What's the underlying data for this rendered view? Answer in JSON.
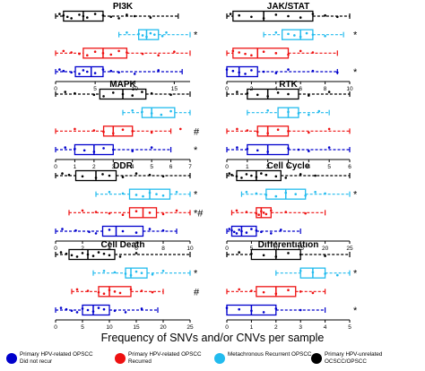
{
  "figure": {
    "xlabel": "Frequency of SNVs and/or CNVs per sample"
  },
  "colors": {
    "group1": "#0000cc",
    "group2": "#ee1111",
    "group3": "#22bbee",
    "group4": "#000000"
  },
  "legend": [
    {
      "label_lines": [
        "Primary HPV-related OPSCC",
        "Did not recur"
      ],
      "color": "#0000cc"
    },
    {
      "label_lines": [
        "Primary HPV-related OPSCC",
        "Recurred"
      ],
      "color": "#ee1111"
    },
    {
      "label_lines": [
        "Metachronous Recurrent OPSCC"
      ],
      "color": "#22bbee"
    },
    {
      "label_lines": [
        "Primary HPV-unrelated",
        "OCSCC/OPSCC"
      ],
      "color": "#000000"
    }
  ],
  "chart_data": [
    {
      "type": "boxplot",
      "title": "PI3K",
      "xlim": [
        0,
        17
      ],
      "xticks": [
        0,
        5,
        10,
        15
      ],
      "groups_top_to_bottom": [
        {
          "group": "Primary HPV-unrelated OCSCC/OPSCC",
          "min": 0,
          "q1": 1,
          "median": 3.5,
          "q3": 6,
          "max": 15.5,
          "marker": "",
          "points": [
            0.5,
            1,
            1.5,
            2,
            3,
            3.5,
            4,
            5,
            6,
            7,
            8,
            9,
            10,
            12
          ]
        },
        {
          "group": "Metachronous Recurrent OPSCC",
          "min": 8,
          "q1": 10.5,
          "median": 11.5,
          "q3": 13,
          "max": 17,
          "marker": "*",
          "points": [
            9,
            10.5,
            11,
            11.5,
            12,
            12.5,
            13.5,
            14
          ]
        },
        {
          "group": "Primary HPV-related OPSCC, Recurred",
          "min": 0,
          "q1": 3.5,
          "median": 6,
          "q3": 9,
          "max": 17,
          "marker": "",
          "points": [
            1,
            2,
            3,
            4,
            5,
            6,
            7,
            8,
            9,
            11,
            13,
            15
          ]
        },
        {
          "group": "Primary HPV-related OPSCC, Did not recur",
          "min": 0,
          "q1": 2.5,
          "median": 4.5,
          "q3": 6,
          "max": 16,
          "marker": "",
          "points": [
            0.5,
            1,
            2,
            3,
            3.5,
            4,
            5,
            6,
            7,
            8,
            10,
            13
          ]
        }
      ]
    },
    {
      "type": "boxplot",
      "title": "JAK/STAT",
      "xlim": [
        0,
        10
      ],
      "xticks": [
        0,
        2,
        4,
        6,
        8,
        10
      ],
      "groups_top_to_bottom": [
        {
          "group": "Primary HPV-unrelated OCSCC/OPSCC",
          "min": 0,
          "q1": 0.5,
          "median": 3,
          "q3": 7,
          "max": 10,
          "marker": "",
          "points": [
            0.3,
            1,
            2,
            3,
            4,
            5,
            6,
            7,
            8,
            9
          ]
        },
        {
          "group": "Metachronous Recurrent OPSCC",
          "min": 3,
          "q1": 4.5,
          "median": 6,
          "q3": 7,
          "max": 9.5,
          "marker": "*",
          "points": [
            4,
            5,
            5.5,
            6,
            6.5,
            7,
            8
          ]
        },
        {
          "group": "Primary HPV-related OPSCC, Recurred",
          "min": 0,
          "q1": 0.5,
          "median": 2.5,
          "q3": 5,
          "max": 9,
          "marker": "",
          "points": [
            0.5,
            1,
            1.5,
            2,
            3,
            4,
            5,
            6,
            7
          ]
        },
        {
          "group": "Primary HPV-related OPSCC, Did not recur",
          "min": 0,
          "q1": 0,
          "median": 1,
          "q3": 2.5,
          "max": 9,
          "marker": "*",
          "points": [
            0,
            0.5,
            1,
            1.5,
            2,
            3,
            4,
            5,
            7,
            9
          ]
        }
      ]
    },
    {
      "type": "boxplot",
      "title": "MAPK",
      "xlim": [
        0,
        7
      ],
      "xticks": [
        0,
        1,
        2,
        3,
        4,
        5,
        6,
        7
      ],
      "groups_top_to_bottom": [
        {
          "group": "Primary HPV-unrelated OCSCC/OPSCC",
          "min": 0,
          "q1": 2.3,
          "median": 3.5,
          "q3": 4.7,
          "max": 7,
          "marker": "",
          "points": [
            0.5,
            1,
            2,
            2.5,
            3,
            3.5,
            4,
            4.5,
            5,
            6
          ]
        },
        {
          "group": "Metachronous Recurrent OPSCC",
          "min": 3.5,
          "q1": 4.5,
          "median": 5,
          "q3": 6.2,
          "max": 7,
          "marker": "",
          "points": [
            4,
            4.5,
            5,
            5.5,
            6
          ]
        },
        {
          "group": "Primary HPV-related OPSCC, Recurred",
          "min": 0,
          "q1": 2.5,
          "median": 3,
          "q3": 4,
          "max": 6,
          "marker": "#",
          "points": [
            1,
            2,
            2.5,
            3,
            3.5,
            4,
            5,
            6.5
          ]
        },
        {
          "group": "Primary HPV-related OPSCC, Did not recur",
          "min": 0,
          "q1": 1,
          "median": 2,
          "q3": 3,
          "max": 6,
          "marker": "*",
          "points": [
            0.5,
            1,
            1.5,
            2,
            2.5,
            3,
            4,
            5
          ]
        }
      ]
    },
    {
      "type": "boxplot",
      "title": "RTK",
      "xlim": [
        0,
        6
      ],
      "xticks": [
        0,
        1,
        2,
        3,
        4,
        5,
        6
      ],
      "groups_top_to_bottom": [
        {
          "group": "Primary HPV-unrelated OCSCC/OPSCC",
          "min": 0,
          "q1": 1,
          "median": 2,
          "q3": 3.5,
          "max": 6,
          "marker": "",
          "points": [
            0.5,
            1,
            1.5,
            2,
            2.5,
            3,
            4,
            5
          ]
        },
        {
          "group": "Metachronous Recurrent OPSCC",
          "min": 1,
          "q1": 2.5,
          "median": 3,
          "q3": 3.5,
          "max": 5,
          "marker": "",
          "points": [
            2,
            3,
            3.5,
            4,
            4.5
          ]
        },
        {
          "group": "Primary HPV-related OPSCC, Recurred",
          "min": 0,
          "q1": 1.5,
          "median": 2,
          "q3": 3,
          "max": 6,
          "marker": "",
          "points": [
            0.5,
            1,
            1.5,
            2,
            2.5,
            3,
            4,
            5
          ]
        },
        {
          "group": "Primary HPV-related OPSCC, Did not recur",
          "min": 0,
          "q1": 1,
          "median": 2,
          "q3": 3,
          "max": 6,
          "marker": "",
          "points": [
            0.5,
            1,
            1.5,
            2,
            3,
            3.5,
            4,
            5
          ]
        }
      ]
    },
    {
      "type": "boxplot",
      "title": "DDR",
      "xlim": [
        0,
        10
      ],
      "xticks": [
        0,
        2,
        4,
        6,
        8,
        10
      ],
      "groups_top_to_bottom": [
        {
          "group": "Primary HPV-unrelated OCSCC/OPSCC",
          "min": 0,
          "q1": 1.5,
          "median": 3,
          "q3": 4.5,
          "max": 10,
          "marker": "",
          "points": [
            0.5,
            1,
            2,
            3,
            3.5,
            4,
            5,
            6,
            7,
            8
          ]
        },
        {
          "group": "Metachronous Recurrent OPSCC",
          "min": 3,
          "q1": 5.5,
          "median": 7,
          "q3": 8.5,
          "max": 10,
          "marker": "*",
          "points": [
            4,
            5,
            6,
            6.5,
            7,
            7.5,
            8,
            9
          ]
        },
        {
          "group": "Primary HPV-related OPSCC, Recurred",
          "min": 1,
          "q1": 5.5,
          "median": 6.5,
          "q3": 7.5,
          "max": 10,
          "marker": "*#",
          "points": [
            2,
            3,
            4,
            5,
            6,
            7,
            8,
            9
          ]
        },
        {
          "group": "Primary HPV-related OPSCC, Did not recur",
          "min": 0,
          "q1": 3.5,
          "median": 4.5,
          "q3": 6.5,
          "max": 9,
          "marker": "",
          "points": [
            0.5,
            1.5,
            2.5,
            3,
            4,
            5,
            6,
            7,
            8
          ]
        }
      ]
    },
    {
      "type": "boxplot",
      "title": "Cell Cycle",
      "xlim": [
        0,
        25
      ],
      "xticks": [
        0,
        5,
        10,
        15,
        20,
        25
      ],
      "groups_top_to_bottom": [
        {
          "group": "Primary HPV-unrelated OCSCC/OPSCC",
          "min": 0,
          "q1": 2,
          "median": 6,
          "q3": 11,
          "max": 25,
          "marker": "",
          "points": [
            0.5,
            1,
            2,
            3,
            4,
            5,
            6,
            7,
            8,
            10,
            12,
            15,
            18
          ]
        },
        {
          "group": "Metachronous Recurrent OPSCC",
          "min": 3,
          "q1": 8,
          "median": 12,
          "q3": 16,
          "max": 25,
          "marker": "*",
          "points": [
            4,
            6,
            8,
            10,
            12,
            14,
            16,
            18,
            20
          ]
        },
        {
          "group": "Primary HPV-related OPSCC, Recurred",
          "min": 1,
          "q1": 6,
          "median": 7,
          "q3": 9,
          "max": 20,
          "marker": "",
          "points": [
            2,
            4,
            6,
            6.5,
            7,
            7.5,
            8,
            9,
            12,
            16
          ]
        },
        {
          "group": "Primary HPV-related OPSCC, Did not recur",
          "min": 0,
          "q1": 1,
          "median": 3,
          "q3": 6,
          "max": 15,
          "marker": "",
          "points": [
            0.5,
            1,
            1.5,
            2,
            2.5,
            3,
            4,
            5,
            6,
            7,
            9,
            11
          ]
        }
      ]
    },
    {
      "type": "boxplot",
      "title": "Cell Death",
      "xlim": [
        0,
        25
      ],
      "xticks": [
        0,
        5,
        10,
        15,
        20,
        25
      ],
      "groups_top_to_bottom": [
        {
          "group": "Primary HPV-unrelated OCSCC/OPSCC",
          "min": 0,
          "q1": 2.5,
          "median": 6,
          "q3": 11,
          "max": 25,
          "marker": "",
          "points": [
            1,
            2,
            3,
            4,
            5,
            6,
            7,
            8,
            9,
            10,
            12,
            15
          ]
        },
        {
          "group": "Metachronous Recurrent OPSCC",
          "min": 7,
          "q1": 13,
          "median": 14,
          "q3": 17,
          "max": 25,
          "marker": "*",
          "points": [
            9,
            11,
            13,
            14,
            15,
            16,
            18,
            20
          ]
        },
        {
          "group": "Primary HPV-related OPSCC, Recurred",
          "min": 3,
          "q1": 8,
          "median": 10,
          "q3": 14,
          "max": 20,
          "marker": "#",
          "points": [
            4,
            6,
            8,
            9,
            10,
            11,
            12,
            14,
            16,
            18
          ]
        },
        {
          "group": "Primary HPV-related OPSCC, Did not recur",
          "min": 0,
          "q1": 5,
          "median": 7,
          "q3": 10,
          "max": 19,
          "marker": "",
          "points": [
            1,
            2,
            3,
            4,
            5,
            6,
            7,
            8,
            9,
            11,
            13,
            16
          ]
        }
      ]
    },
    {
      "type": "boxplot",
      "title": "Differentiation",
      "xlim": [
        0,
        5
      ],
      "xticks": [
        0,
        1,
        2,
        3,
        4,
        5
      ],
      "groups_top_to_bottom": [
        {
          "group": "Primary HPV-unrelated OCSCC/OPSCC",
          "min": 0,
          "q1": 1,
          "median": 2,
          "q3": 3,
          "max": 5,
          "marker": "",
          "points": [
            0.5,
            1,
            1.5,
            2,
            2.5,
            3,
            4
          ]
        },
        {
          "group": "Metachronous Recurrent OPSCC",
          "min": 2,
          "q1": 3,
          "median": 3.5,
          "q3": 4,
          "max": 5,
          "marker": "*",
          "points": [
            3,
            3.5,
            4,
            4.5
          ]
        },
        {
          "group": "Primary HPV-related OPSCC, Recurred",
          "min": 0,
          "q1": 1.2,
          "median": 2,
          "q3": 2.8,
          "max": 4,
          "marker": "",
          "points": [
            0.5,
            1,
            1.5,
            2,
            2.5,
            3,
            3.5
          ]
        },
        {
          "group": "Primary HPV-related OPSCC, Did not recur",
          "min": 0,
          "q1": 0,
          "median": 1,
          "q3": 2,
          "max": 4,
          "marker": "*",
          "points": [
            0,
            0.5,
            1,
            1.5,
            2,
            3
          ]
        }
      ]
    }
  ]
}
